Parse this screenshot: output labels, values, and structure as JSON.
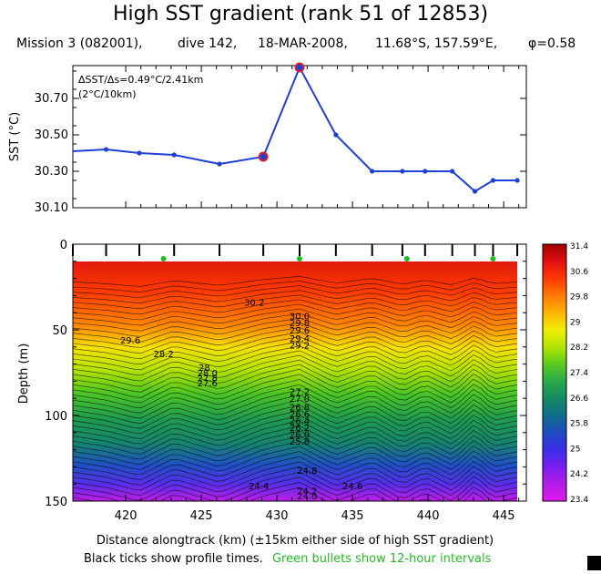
{
  "title": "High SST gradient (rank 51 of 12853)",
  "subtitle": {
    "mission": "Mission 3 (082001),",
    "dive": "dive 142,",
    "date": "18-MAR-2008,",
    "position": "11.68°S, 157.59°E,",
    "phi": "φ=0.58"
  },
  "footer": {
    "black_part": "Black ticks show profile times.",
    "green_part": "Green bullets show 12-hour intervals"
  },
  "colors": {
    "line": "#1f3fd6",
    "marker_outline": "#e02020",
    "green_bullet": "#22bb22"
  },
  "chart_data": [
    {
      "type": "line",
      "ylabel": "SST (°C)",
      "ylim": [
        30.1,
        30.88
      ],
      "yticks": [
        "30.10",
        "30.30",
        "30.50",
        "30.70"
      ],
      "xlim": [
        416.5,
        446.5
      ],
      "annotation_line1": "ΔSST/Δs=0.49°C/2.41km",
      "annotation_line2": "(2°C/10km)",
      "x": [
        416.5,
        418.7,
        420.9,
        423.2,
        426.2,
        429.1,
        431.5,
        433.9,
        436.3,
        438.3,
        439.8,
        441.6,
        443.1,
        444.3,
        445.9
      ],
      "y": [
        30.41,
        30.42,
        30.4,
        30.39,
        30.34,
        30.38,
        30.87,
        30.5,
        30.3,
        30.3,
        30.3,
        30.3,
        30.19,
        30.25,
        30.25
      ],
      "highlight_indices": [
        5,
        6
      ]
    },
    {
      "type": "heatmap",
      "ylabel": "Depth (m)",
      "xlabel": "Distance alongtrack (km) (±15km either side of high SST gradient)",
      "xlim": [
        416.5,
        446.5
      ],
      "ylim": [
        0,
        150
      ],
      "xticks": [
        "420",
        "425",
        "430",
        "435",
        "440",
        "445"
      ],
      "yticks": [
        "0",
        "50",
        "100",
        "150"
      ],
      "colorbar_labels": [
        "31.4",
        "30.6",
        "29.8",
        "29",
        "28.2",
        "27.4",
        "26.6",
        "25.8",
        "25",
        "24.2",
        "23.4"
      ],
      "colorbar_colors": [
        "#a00000",
        "#e01010",
        "#ff3a00",
        "#ff7a00",
        "#ffb400",
        "#f0ee00",
        "#b4e400",
        "#5acb1e",
        "#2aaa4a",
        "#168a62",
        "#106e8c",
        "#1e4cc0",
        "#3c2ee8",
        "#7a1ef0",
        "#b41ee8",
        "#e018f0"
      ],
      "contour_labels": [
        "30.2",
        "29.6",
        "28.2",
        "30.0",
        "29.8",
        "29.6",
        "29.4",
        "29.2",
        "28",
        "28.0",
        "27.8",
        "27.6",
        "27.2",
        "27.0",
        "26.8",
        "26.6",
        "26.4",
        "26.2",
        "26.0",
        "25.8",
        "24.8",
        "24.4",
        "24.6",
        "24.2",
        "24.0"
      ],
      "profile_ticks": [
        416.5,
        418.7,
        420.9,
        423.2,
        426.2,
        429.1,
        431.5,
        433.9,
        436.3,
        438.3,
        439.8,
        441.6,
        443.1,
        444.3,
        445.9
      ],
      "green_bullets": [
        422.5,
        431.5,
        438.6,
        444.3
      ]
    }
  ]
}
